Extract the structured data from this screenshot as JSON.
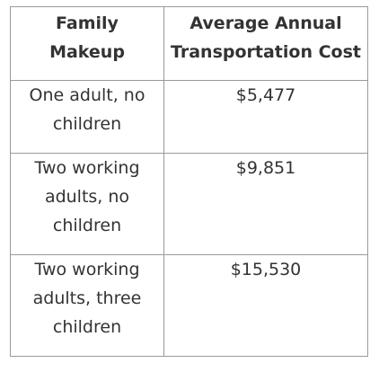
{
  "table": {
    "headers": [
      "Family Makeup",
      "Average Annual Transportation Cost"
    ],
    "rows": [
      {
        "family": "One adult, no children",
        "cost": "$5,477"
      },
      {
        "family": "Two working adults, no children",
        "cost": "$9,851"
      },
      {
        "family": "Two working adults, three children",
        "cost": "$15,530"
      }
    ]
  }
}
